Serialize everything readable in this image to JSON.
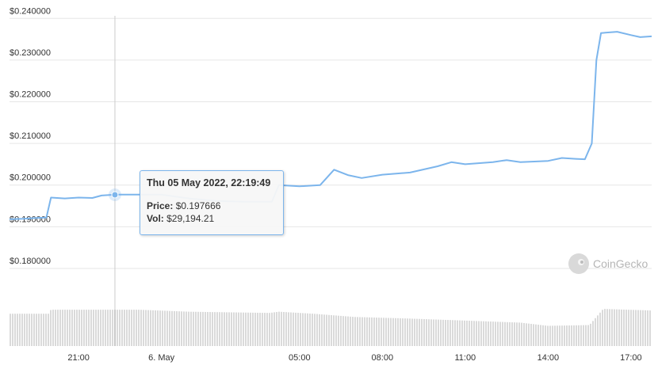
{
  "chart_data": {
    "type": "line",
    "y_axis": {
      "ticks": [
        "$0.240000",
        "$0.230000",
        "$0.220000",
        "$0.210000",
        "$0.200000",
        "$0.190000",
        "$0.180000"
      ],
      "range": [
        0.176,
        0.241
      ]
    },
    "x_axis": {
      "ticks": [
        "21:00",
        "6. May",
        "05:00",
        "08:00",
        "11:00",
        "14:00",
        "17:00"
      ],
      "start": "2022-05-05 18:30",
      "end": "2022-05-06 17:45"
    },
    "price_series": [
      [
        "2022-05-05 18:30",
        0.1918
      ],
      [
        "2022-05-05 19:00",
        0.1919
      ],
      [
        "2022-05-05 19:30",
        0.1921
      ],
      [
        "2022-05-05 19:50",
        0.1922
      ],
      [
        "2022-05-05 20:00",
        0.197
      ],
      [
        "2022-05-05 20:30",
        0.1968
      ],
      [
        "2022-05-05 21:00",
        0.197
      ],
      [
        "2022-05-05 21:30",
        0.1969
      ],
      [
        "2022-05-05 21:50",
        0.1975
      ],
      [
        "2022-05-05 22:20",
        0.1977
      ],
      [
        "2022-05-05 23:00",
        0.1977
      ],
      [
        "2022-05-06 00:00",
        0.1977
      ],
      [
        "2022-05-06 01:00",
        0.1968
      ],
      [
        "2022-05-06 02:00",
        0.1962
      ],
      [
        "2022-05-06 03:00",
        0.196
      ],
      [
        "2022-05-06 04:00",
        0.196
      ],
      [
        "2022-05-06 04:15",
        0.2
      ],
      [
        "2022-05-06 05:00",
        0.1997
      ],
      [
        "2022-05-06 05:45",
        0.2
      ],
      [
        "2022-05-06 06:15",
        0.2037
      ],
      [
        "2022-05-06 06:45",
        0.2024
      ],
      [
        "2022-05-06 07:15",
        0.2017
      ],
      [
        "2022-05-06 08:00",
        0.2025
      ],
      [
        "2022-05-06 09:00",
        0.203
      ],
      [
        "2022-05-06 10:00",
        0.2045
      ],
      [
        "2022-05-06 10:30",
        0.2055
      ],
      [
        "2022-05-06 11:00",
        0.205
      ],
      [
        "2022-05-06 12:00",
        0.2055
      ],
      [
        "2022-05-06 12:30",
        0.206
      ],
      [
        "2022-05-06 13:00",
        0.2055
      ],
      [
        "2022-05-06 14:00",
        0.2058
      ],
      [
        "2022-05-06 14:30",
        0.2065
      ],
      [
        "2022-05-06 15:00",
        0.2063
      ],
      [
        "2022-05-06 15:20",
        0.2062
      ],
      [
        "2022-05-06 15:35",
        0.21
      ],
      [
        "2022-05-06 15:45",
        0.23
      ],
      [
        "2022-05-06 15:55",
        0.2365
      ],
      [
        "2022-05-06 16:30",
        0.2368
      ],
      [
        "2022-05-06 17:00",
        0.236
      ],
      [
        "2022-05-06 17:20",
        0.2355
      ],
      [
        "2022-05-06 17:45",
        0.2357
      ]
    ],
    "volume_series": [
      [
        "2022-05-05 18:30",
        0.8
      ],
      [
        "2022-05-05 19:55",
        0.8
      ],
      [
        "2022-05-05 20:00",
        0.9
      ],
      [
        "2022-05-05 23:10",
        0.9
      ],
      [
        "2022-05-06 01:00",
        0.85
      ],
      [
        "2022-05-06 03:55",
        0.82
      ],
      [
        "2022-05-06 04:15",
        0.85
      ],
      [
        "2022-05-06 05:30",
        0.8
      ],
      [
        "2022-05-06 07:00",
        0.72
      ],
      [
        "2022-05-06 09:00",
        0.68
      ],
      [
        "2022-05-06 11:00",
        0.63
      ],
      [
        "2022-05-06 13:00",
        0.58
      ],
      [
        "2022-05-06 14:00",
        0.5
      ],
      [
        "2022-05-06 15:30",
        0.52
      ],
      [
        "2022-05-06 16:00",
        0.92
      ],
      [
        "2022-05-06 17:45",
        0.88
      ]
    ],
    "grid": true,
    "legend": "none",
    "hover": {
      "time": "2022-05-05 22:19:49",
      "price": 0.197666
    }
  },
  "tooltip": {
    "title": "Thu 05 May 2022, 22:19:49",
    "price_label": "Price:",
    "price_value": "$0.197666",
    "vol_label": "Vol:",
    "vol_value": "$29,194.21"
  },
  "brand": {
    "name": "CoinGecko",
    "icon": "gecko-logo-icon"
  },
  "colors": {
    "line": "#7cb5ec",
    "volume": "#dadada",
    "grid": "#e6e6e6"
  }
}
